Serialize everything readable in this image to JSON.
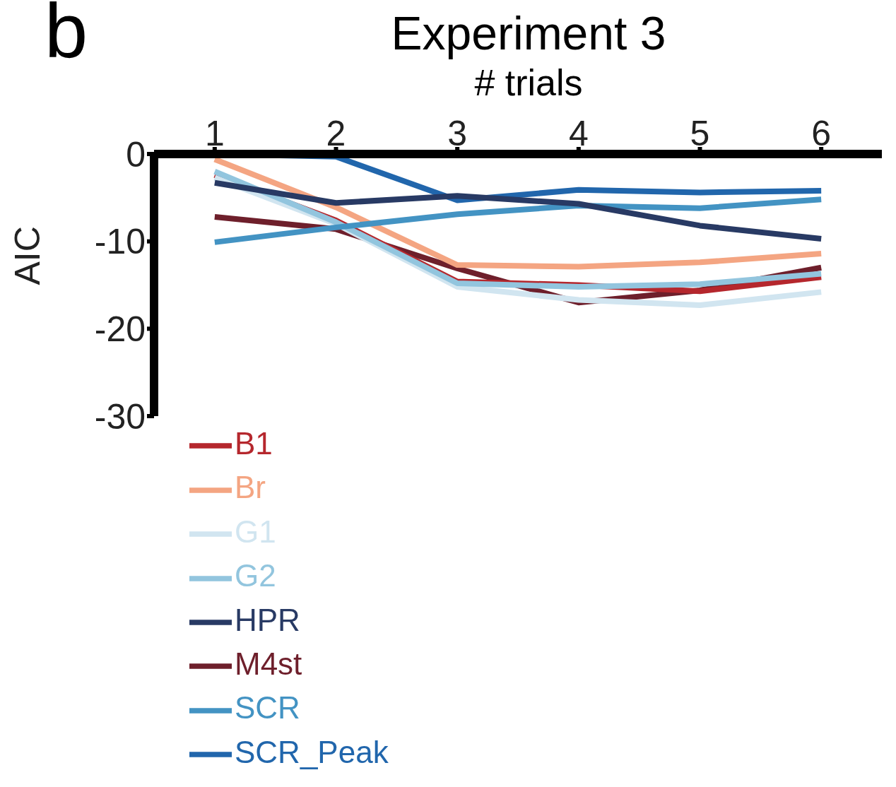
{
  "chart_data": {
    "type": "line",
    "title": "Experiment 3",
    "xlabel": "# trials",
    "ylabel": "AIC",
    "annotations": [
      "b"
    ],
    "x": [
      1,
      2,
      3,
      4,
      5,
      6
    ],
    "series": [
      {
        "name": "M4st",
        "color": "#6e1f2b",
        "values": [
          -7.2,
          -8.6,
          -13.1,
          -17,
          -15.6,
          -13
        ]
      },
      {
        "name": "B1",
        "color": "#b5272d",
        "values": [
          -2.4,
          -7.6,
          -14.6,
          -15,
          -15.7,
          -14.1
        ]
      },
      {
        "name": "Br",
        "color": "#f4a582",
        "values": [
          -0.6,
          -6.1,
          -12.7,
          -12.9,
          -12.4,
          -11.4
        ]
      },
      {
        "name": "G1",
        "color": "#d1e5f0",
        "values": [
          -2.7,
          -8,
          -15.2,
          -16.7,
          -17.3,
          -15.8
        ]
      },
      {
        "name": "G2",
        "color": "#92c5de",
        "values": [
          -2,
          -7.8,
          -14.8,
          -15.2,
          -14.9,
          -13.7
        ]
      },
      {
        "name": "SCR",
        "color": "#4393c3",
        "values": [
          -10.1,
          -8.4,
          -6.9,
          -5.9,
          -6.2,
          -5.2
        ]
      },
      {
        "name": "SCR_Peak",
        "color": "#2166ac",
        "values": [
          0,
          -0.3,
          -5.3,
          -4.1,
          -4.4,
          -4.2
        ]
      },
      {
        "name": "HPR",
        "color": "#283a64",
        "values": [
          -3.3,
          -5.6,
          -4.8,
          -5.7,
          -8.2,
          -9.7
        ]
      }
    ],
    "xlim": [
      0.5,
      6.5
    ],
    "xticks": [
      1,
      2,
      3,
      4,
      5,
      6
    ],
    "ylim": [
      -30,
      0
    ],
    "yticks": [
      0,
      -10,
      -20,
      -30
    ],
    "legend": "bottom left"
  }
}
